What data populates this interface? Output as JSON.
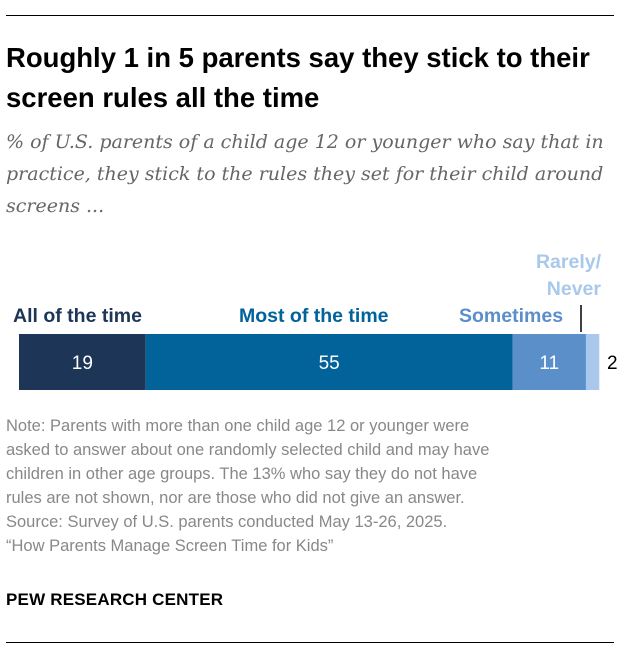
{
  "title": "Roughly 1 in 5 parents say they stick to their screen rules all the time",
  "subtitle": "% of U.S. parents of a child age 12 or younger who say that in practice, they stick to the rules they set for their child around screens ...",
  "chart_data": {
    "type": "bar",
    "orientation": "horizontal-stacked",
    "categories": [
      "All of the time",
      "Most of the time",
      "Sometimes",
      "Rarely/ Never"
    ],
    "values": [
      19,
      55,
      11,
      2
    ],
    "colors": [
      "#1d3557",
      "#01639a",
      "#5a8fca",
      "#a9c8ec"
    ],
    "label_colors": [
      "#1d3557",
      "#01639a",
      "#5a8fca",
      "#a9c8ec"
    ],
    "value_label_colors": [
      "#ffffff",
      "#ffffff",
      "#ffffff",
      "#000000"
    ]
  },
  "category_labels": {
    "all_of_the_time": "All of the time",
    "most_of_the_time": "Most of the time",
    "sometimes": "Sometimes",
    "rarely_line1": "Rarely/",
    "rarely_line2": "Never"
  },
  "note": {
    "lines": [
      "Note: Parents with more than one child age 12 or younger were",
      "asked to answer about one randomly selected child and may have",
      "children in other age groups. The 13% who say they do not have",
      "rules are not shown, nor are those who did not give an answer.",
      "Source: Survey of U.S. parents conducted May 13-26, 2025.",
      "“How Parents Manage Screen Time for Kids”"
    ]
  },
  "source_org": "PEW RESEARCH CENTER"
}
